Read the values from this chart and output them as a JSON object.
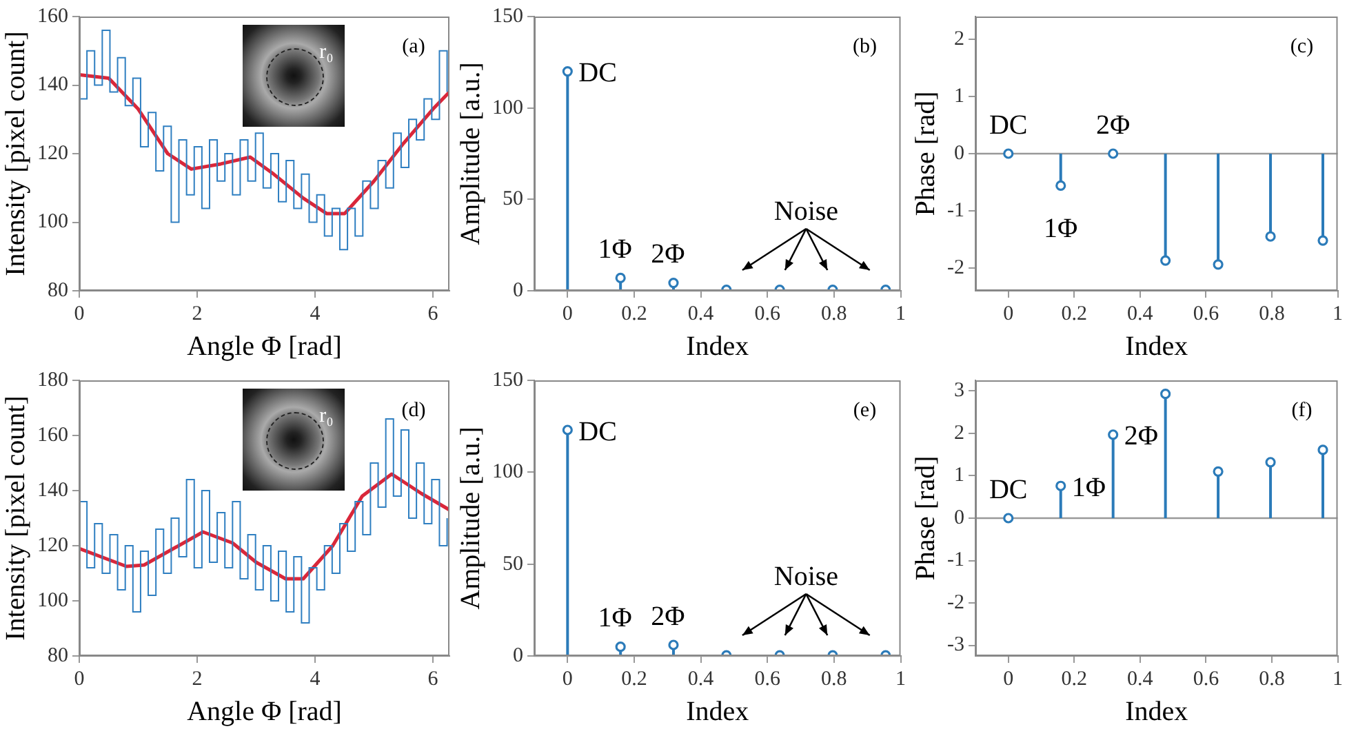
{
  "chart_data": [
    {
      "type": "line",
      "xlabel": "Angle Φ [rad]",
      "ylabel": "Intensity [pixel count]",
      "xlim": [
        0,
        6.28
      ],
      "ylim": [
        80,
        160
      ],
      "xticks": [
        0,
        2,
        4,
        6
      ],
      "yticks": [
        80,
        100,
        120,
        140,
        160
      ],
      "x": [
        0,
        0.13,
        0.26,
        0.39,
        0.52,
        0.65,
        0.78,
        0.91,
        1.04,
        1.17,
        1.3,
        1.43,
        1.56,
        1.69,
        1.82,
        1.95,
        2.08,
        2.21,
        2.34,
        2.47,
        2.6,
        2.73,
        2.86,
        2.99,
        3.12,
        3.25,
        3.38,
        3.51,
        3.64,
        3.77,
        3.9,
        4.03,
        4.16,
        4.29,
        4.42,
        4.55,
        4.68,
        4.81,
        4.94,
        5.07,
        5.2,
        5.33,
        5.46,
        5.59,
        5.72,
        5.85,
        5.98,
        6.11,
        6.24
      ],
      "series": [
        {
          "type": "step",
          "color": "#2f7fc1",
          "values": [
            136,
            150,
            140,
            156,
            138,
            148,
            134,
            142,
            122,
            132,
            115,
            128,
            100,
            124,
            108,
            122,
            104,
            124,
            112,
            120,
            108,
            124,
            112,
            126,
            110,
            120,
            106,
            118,
            104,
            114,
            100,
            108,
            96,
            104,
            92,
            104,
            96,
            112,
            104,
            118,
            110,
            126,
            116,
            130,
            124,
            136,
            130,
            150,
            138
          ]
        },
        {
          "type": "line",
          "color": "#d9273a",
          "x": [
            0,
            0.5,
            1,
            1.5,
            1.9,
            2.4,
            2.9,
            3.3,
            3.8,
            4.2,
            4.5,
            5,
            5.5,
            6,
            6.28
          ],
          "values": [
            143,
            142,
            133,
            120,
            115.5,
            117,
            119,
            114,
            107,
            102.5,
            102.5,
            112,
            123,
            133,
            138
          ]
        }
      ],
      "annotations": [
        "r₀",
        "(a)"
      ]
    },
    {
      "type": "lollipop",
      "xlabel": "Index",
      "ylabel": "Amplitude [a.u.]",
      "xlim": [
        -0.1,
        1
      ],
      "ylim": [
        0,
        150
      ],
      "xticks": [
        0,
        0.2,
        0.4,
        0.6,
        0.8,
        1
      ],
      "yticks": [
        0,
        50,
        100,
        150
      ],
      "marker": "circle",
      "color": "#2b7bb9",
      "x": [
        0,
        0.159,
        0.318,
        0.477,
        0.637,
        0.796,
        0.955
      ],
      "values": [
        120,
        7,
        4.3,
        0.5,
        0.5,
        0.5,
        0.5
      ],
      "annotations": [
        {
          "text": "DC",
          "x": 0,
          "y": 120
        },
        {
          "text": "1Φ",
          "x": 0.159,
          "y": 7
        },
        {
          "text": "2Φ",
          "x": 0.318,
          "y": 4.3
        },
        "Noise",
        "(b)"
      ]
    },
    {
      "type": "lollipop",
      "xlabel": "Index",
      "ylabel": "Phase [rad]",
      "xlim": [
        -0.1,
        1
      ],
      "ylim": [
        -2.4,
        2.4
      ],
      "xticks": [
        0,
        0.2,
        0.4,
        0.6,
        0.8,
        1
      ],
      "yticks": [
        -2,
        -1,
        0,
        1,
        2
      ],
      "marker": "circle",
      "color": "#2b7bb9",
      "x": [
        0,
        0.159,
        0.318,
        0.477,
        0.637,
        0.796,
        0.955
      ],
      "values": [
        0,
        -0.56,
        0,
        -1.87,
        -1.94,
        -1.45,
        -1.52
      ],
      "annotations": [
        {
          "text": "DC",
          "x": 0,
          "y": 0
        },
        {
          "text": "1Φ",
          "x": 0.159,
          "y": -0.56
        },
        {
          "text": "2Φ",
          "x": 0.318,
          "y": 0
        },
        "(c)"
      ]
    },
    {
      "type": "line",
      "xlabel": "Angle Φ [rad]",
      "ylabel": "Intensity [pixel count]",
      "xlim": [
        0,
        6.28
      ],
      "ylim": [
        80,
        180
      ],
      "xticks": [
        0,
        2,
        4,
        6
      ],
      "yticks": [
        80,
        100,
        120,
        140,
        160,
        180
      ],
      "x": [
        0,
        0.13,
        0.26,
        0.39,
        0.52,
        0.65,
        0.78,
        0.91,
        1.04,
        1.17,
        1.3,
        1.43,
        1.56,
        1.69,
        1.82,
        1.95,
        2.08,
        2.21,
        2.34,
        2.47,
        2.6,
        2.73,
        2.86,
        2.99,
        3.12,
        3.25,
        3.38,
        3.51,
        3.64,
        3.77,
        3.9,
        4.03,
        4.16,
        4.29,
        4.42,
        4.55,
        4.68,
        4.81,
        4.94,
        5.07,
        5.2,
        5.33,
        5.46,
        5.59,
        5.72,
        5.85,
        5.98,
        6.11,
        6.24
      ],
      "series": [
        {
          "type": "step",
          "color": "#2f7fc1",
          "values": [
            136,
            112,
            128,
            110,
            124,
            104,
            120,
            96,
            118,
            102,
            126,
            110,
            130,
            116,
            144,
            112,
            140,
            114,
            132,
            112,
            136,
            108,
            124,
            104,
            120,
            100,
            118,
            96,
            116,
            92,
            112,
            104,
            120,
            110,
            128,
            118,
            136,
            124,
            150,
            134,
            166,
            138,
            162,
            130,
            150,
            128,
            144,
            120,
            130
          ]
        },
        {
          "type": "line",
          "color": "#d9273a",
          "x": [
            0,
            0.8,
            1.1,
            1.6,
            2.1,
            2.6,
            3,
            3.5,
            3.8,
            4.3,
            4.8,
            5.3,
            5.8,
            6.28
          ],
          "values": [
            119,
            112.5,
            113,
            119,
            125,
            121,
            114,
            108,
            108,
            120,
            138,
            146,
            139,
            133
          ]
        }
      ],
      "annotations": [
        "r₀",
        "(d)"
      ]
    },
    {
      "type": "lollipop",
      "xlabel": "Index",
      "ylabel": "Amplitude [a.u.]",
      "xlim": [
        -0.1,
        1
      ],
      "ylim": [
        0,
        150
      ],
      "xticks": [
        0,
        0.2,
        0.4,
        0.6,
        0.8,
        1
      ],
      "yticks": [
        0,
        50,
        100,
        150
      ],
      "marker": "circle",
      "color": "#2b7bb9",
      "x": [
        0,
        0.159,
        0.318,
        0.477,
        0.637,
        0.796,
        0.955
      ],
      "values": [
        123,
        5,
        6,
        0.3,
        0.3,
        0.3,
        0.3
      ],
      "annotations": [
        {
          "text": "DC",
          "x": 0,
          "y": 123
        },
        {
          "text": "1Φ",
          "x": 0.159,
          "y": 5
        },
        {
          "text": "2Φ",
          "x": 0.318,
          "y": 6
        },
        "Noise",
        "(e)"
      ]
    },
    {
      "type": "lollipop",
      "xlabel": "Index",
      "ylabel": "Phase [rad]",
      "xlim": [
        -0.1,
        1
      ],
      "ylim": [
        -3.25,
        3.25
      ],
      "xticks": [
        0,
        0.2,
        0.4,
        0.6,
        0.8,
        1
      ],
      "yticks": [
        -3,
        -2,
        -1,
        0,
        1,
        2,
        3
      ],
      "marker": "circle",
      "color": "#2b7bb9",
      "x": [
        0,
        0.159,
        0.318,
        0.477,
        0.637,
        0.796,
        0.955
      ],
      "values": [
        0,
        0.76,
        1.97,
        2.93,
        1.1,
        1.32,
        1.61
      ],
      "annotations": [
        {
          "text": "DC",
          "x": 0,
          "y": 0
        },
        {
          "text": "1Φ",
          "x": 0.159,
          "y": 0.76
        },
        {
          "text": "2Φ",
          "x": 0.318,
          "y": 1.97
        },
        "(f)"
      ]
    }
  ]
}
